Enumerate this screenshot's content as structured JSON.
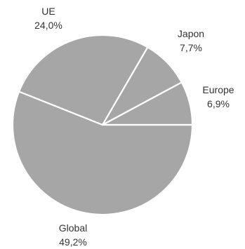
{
  "chart_data": {
    "type": "pie",
    "title": "",
    "slices": [
      {
        "label": "Europe",
        "value": 6.9,
        "value_text": "6,9%",
        "color": "#a6a6a6"
      },
      {
        "label": "Japon",
        "value": 7.7,
        "value_text": "7,7%",
        "color": "#a6a6a6"
      },
      {
        "label": "UE",
        "value": 24.0,
        "value_text": "24,0%",
        "color": "#a6a6a6"
      },
      {
        "label": "Global",
        "value": 49.2,
        "value_text": "49,2%",
        "color": "#a6a6a6"
      }
    ],
    "slice_separator_color": "#ffffff",
    "label_color": "#333333",
    "legend": "none"
  }
}
